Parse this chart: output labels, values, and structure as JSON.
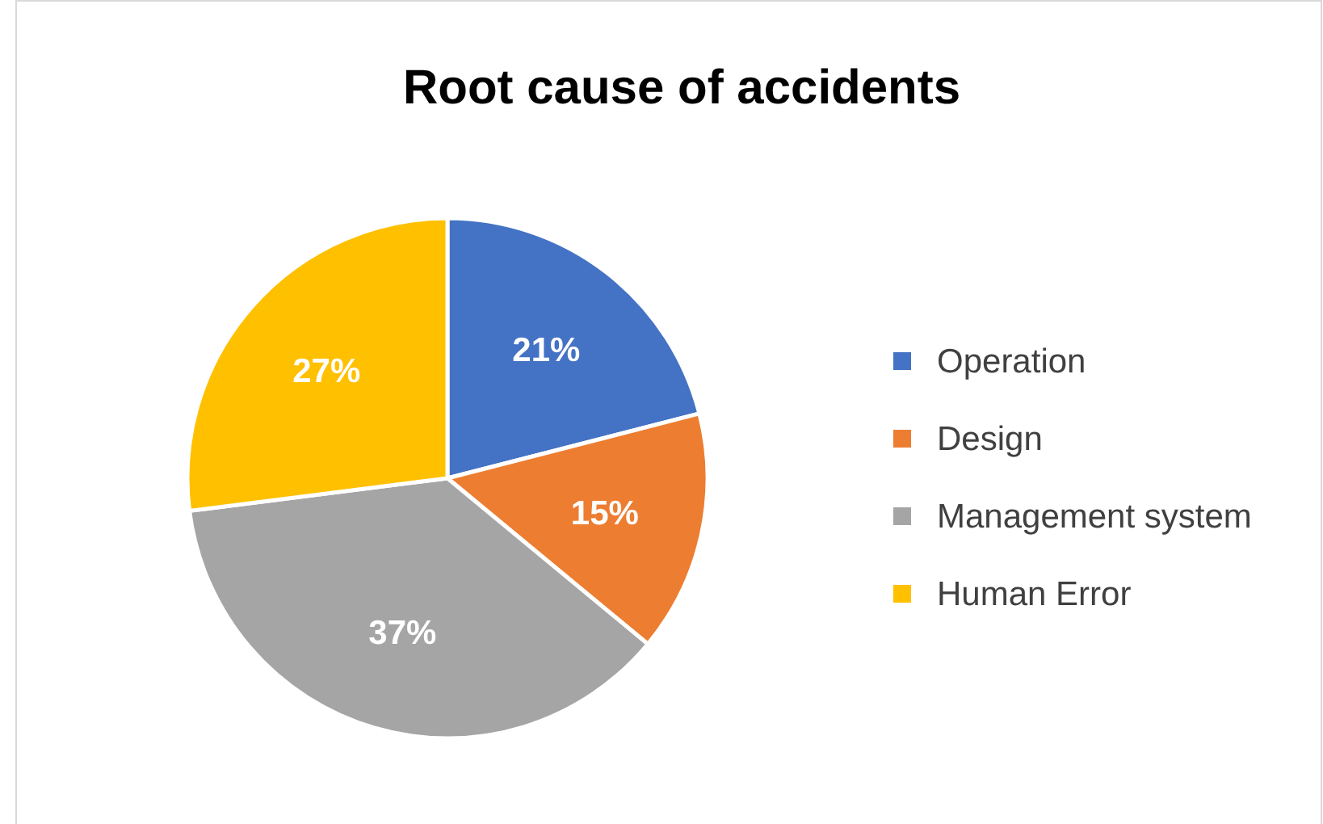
{
  "chart_data": {
    "type": "pie",
    "title": "Root cause of accidents",
    "categories": [
      "Operation",
      "Design",
      "Management system",
      "Human Error"
    ],
    "values": [
      21,
      15,
      37,
      27
    ],
    "colors": [
      "#4472c4",
      "#ed7d31",
      "#a5a5a5",
      "#ffc000"
    ],
    "value_labels": [
      "21%",
      "15%",
      "37%",
      "27%"
    ],
    "legend": "right"
  }
}
